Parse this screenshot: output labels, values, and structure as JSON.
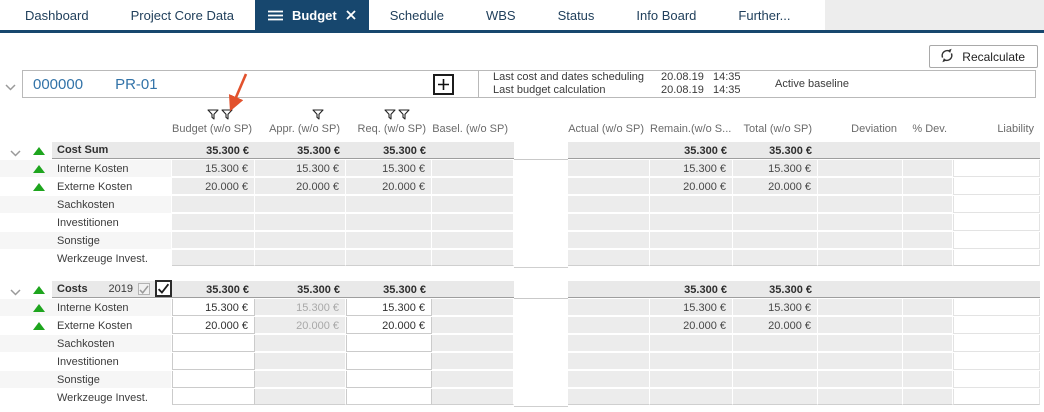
{
  "colors": {
    "accent_navy": "#17476e",
    "link_blue": "#3273a8",
    "indicator_green": "#1ea51e",
    "annotation_orange": "#e2522d",
    "band_gray": "#e9e9e9",
    "cell_gray": "#ececec"
  },
  "tabs": [
    {
      "label": "Dashboard",
      "active": false
    },
    {
      "label": "Project Core Data",
      "active": false
    },
    {
      "label": "Budget",
      "active": true
    },
    {
      "label": "Schedule",
      "active": false
    },
    {
      "label": "WBS",
      "active": false
    },
    {
      "label": "Status",
      "active": false
    },
    {
      "label": "Info Board",
      "active": false
    },
    {
      "label": "Further...",
      "active": false
    }
  ],
  "toolbar": {
    "recalculate_label": "Recalculate"
  },
  "project": {
    "number": "000000",
    "code": "PR-01",
    "info_rows": [
      {
        "label": "Last cost and dates scheduling",
        "date": "20.08.19",
        "time": "14:35"
      },
      {
        "label": "Last budget calculation",
        "date": "20.08.19",
        "time": "14:35"
      }
    ],
    "baseline": "Active baseline"
  },
  "table": {
    "columns": [
      {
        "key": "budget",
        "label": "Budget (w/o SP)",
        "filter_icons": 2
      },
      {
        "key": "appr",
        "label": "Appr. (w/o SP)",
        "filter_icons": 1
      },
      {
        "key": "req",
        "label": "Req. (w/o SP)",
        "filter_icons": 2
      },
      {
        "key": "basel",
        "label": "Basel. (w/o SP)",
        "filter_icons": 0
      },
      {
        "key": "actual",
        "label": "Actual (w/o SP)",
        "filter_icons": 0
      },
      {
        "key": "remain",
        "label": "Remain.(w/o S...",
        "filter_icons": 0
      },
      {
        "key": "total",
        "label": "Total (w/o SP)",
        "filter_icons": 0
      },
      {
        "key": "deviation",
        "label": "Deviation",
        "filter_icons": 0
      },
      {
        "key": "pct-dev",
        "label": "% Dev.",
        "filter_icons": 0
      },
      {
        "key": "liability",
        "label": "Liability",
        "filter_icons": 0
      }
    ],
    "groups": [
      {
        "label": "Cost Sum",
        "year": "",
        "has_checkboxes": false,
        "editable_cols": [],
        "muted_cols": [],
        "totals": [
          "35.300 €",
          "35.300 €",
          "35.300 €",
          "",
          "",
          "35.300 €",
          "35.300 €",
          "",
          "",
          ""
        ],
        "rows": [
          {
            "label": "Interne Kosten",
            "has_indicator": true,
            "values": [
              "15.300 €",
              "15.300 €",
              "15.300 €",
              "",
              "",
              "15.300 €",
              "15.300 €",
              "",
              "",
              ""
            ]
          },
          {
            "label": "Externe Kosten",
            "has_indicator": true,
            "values": [
              "20.000 €",
              "20.000 €",
              "20.000 €",
              "",
              "",
              "20.000 €",
              "20.000 €",
              "",
              "",
              ""
            ]
          },
          {
            "label": "Sachkosten",
            "has_indicator": false,
            "values": [
              "",
              "",
              "",
              "",
              "",
              "",
              "",
              "",
              "",
              ""
            ]
          },
          {
            "label": "Investitionen",
            "has_indicator": false,
            "values": [
              "",
              "",
              "",
              "",
              "",
              "",
              "",
              "",
              "",
              ""
            ]
          },
          {
            "label": "Sonstige",
            "has_indicator": false,
            "values": [
              "",
              "",
              "",
              "",
              "",
              "",
              "",
              "",
              "",
              ""
            ]
          },
          {
            "label": "Werkzeuge Invest.",
            "has_indicator": false,
            "values": [
              "",
              "",
              "",
              "",
              "",
              "",
              "",
              "",
              "",
              ""
            ]
          }
        ]
      },
      {
        "label": "Costs",
        "year": "2019",
        "has_checkboxes": true,
        "editable_cols": [
          0,
          2
        ],
        "muted_cols": [
          1
        ],
        "totals": [
          "35.300 €",
          "35.300 €",
          "35.300 €",
          "",
          "",
          "35.300 €",
          "35.300 €",
          "",
          "",
          ""
        ],
        "rows": [
          {
            "label": "Interne Kosten",
            "has_indicator": true,
            "values": [
              "15.300 €",
              "15.300 €",
              "15.300 €",
              "",
              "",
              "15.300 €",
              "15.300 €",
              "",
              "",
              ""
            ]
          },
          {
            "label": "Externe Kosten",
            "has_indicator": true,
            "values": [
              "20.000 €",
              "20.000 €",
              "20.000 €",
              "",
              "",
              "20.000 €",
              "20.000 €",
              "",
              "",
              ""
            ]
          },
          {
            "label": "Sachkosten",
            "has_indicator": false,
            "values": [
              "",
              "",
              "",
              "",
              "",
              "",
              "",
              "",
              "",
              ""
            ]
          },
          {
            "label": "Investitionen",
            "has_indicator": false,
            "values": [
              "",
              "",
              "",
              "",
              "",
              "",
              "",
              "",
              "",
              ""
            ]
          },
          {
            "label": "Sonstige",
            "has_indicator": false,
            "values": [
              "",
              "",
              "",
              "",
              "",
              "",
              "",
              "",
              "",
              ""
            ]
          },
          {
            "label": "Werkzeuge Invest.",
            "has_indicator": false,
            "values": [
              "",
              "",
              "",
              "",
              "",
              "",
              "",
              "",
              "",
              ""
            ]
          }
        ]
      }
    ]
  }
}
